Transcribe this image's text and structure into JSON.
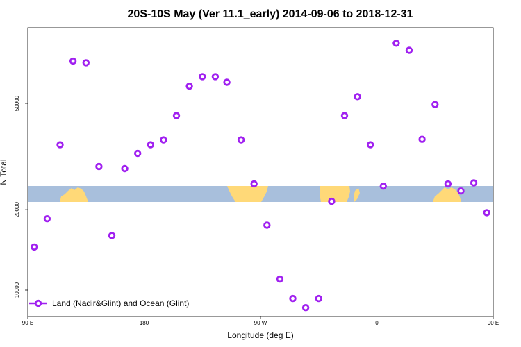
{
  "chart_data": {
    "type": "scatter",
    "title": "20S-10S May (Ver 11.1_early)   2014-09-06 to 2018-12-31",
    "xlabel": "Longitude (deg E)",
    "ylabel": "N Total",
    "x_domain": [
      90,
      450
    ],
    "y_log_scale": true,
    "ylim": [
      8500,
      90000
    ],
    "x_ticks": [
      {
        "value": 90,
        "label": "90 E"
      },
      {
        "value": 180,
        "label": "180"
      },
      {
        "value": 270,
        "label": "90 W"
      },
      {
        "value": 360,
        "label": "0"
      },
      {
        "value": 450,
        "label": "90 E"
      }
    ],
    "y_ticks": [
      {
        "value": 10000,
        "label": "10000"
      },
      {
        "value": 20000,
        "label": "20000"
      },
      {
        "value": 50000,
        "label": "50000"
      }
    ],
    "marker_color": "#a020f0",
    "land_color": "#ffd978",
    "ocean_color": "#a8bfdc",
    "legend": {
      "label": "Land (Nadir&Glint) and Ocean (Glint)",
      "position": "bottom-left"
    },
    "series": [
      {
        "name": "Land (Nadir&Glint) and Ocean (Glint)",
        "points": [
          {
            "lon": 95,
            "n": 14500
          },
          {
            "lon": 105,
            "n": 18500
          },
          {
            "lon": 115,
            "n": 35000
          },
          {
            "lon": 125,
            "n": 72000
          },
          {
            "lon": 135,
            "n": 71000
          },
          {
            "lon": 145,
            "n": 29000
          },
          {
            "lon": 155,
            "n": 16000
          },
          {
            "lon": 165,
            "n": 28500
          },
          {
            "lon": 175,
            "n": 32500
          },
          {
            "lon": 185,
            "n": 35000
          },
          {
            "lon": 195,
            "n": 36500
          },
          {
            "lon": 205,
            "n": 45000
          },
          {
            "lon": 215,
            "n": 58000
          },
          {
            "lon": 225,
            "n": 63000
          },
          {
            "lon": 235,
            "n": 63000
          },
          {
            "lon": 244,
            "n": 60000
          },
          {
            "lon": 255,
            "n": 36500
          },
          {
            "lon": 265,
            "n": 25000
          },
          {
            "lon": 275,
            "n": 17500
          },
          {
            "lon": 285,
            "n": 11000
          },
          {
            "lon": 295,
            "n": 9300
          },
          {
            "lon": 305,
            "n": 8600
          },
          {
            "lon": 315,
            "n": 9300
          },
          {
            "lon": 325,
            "n": 21500
          },
          {
            "lon": 335,
            "n": 45000
          },
          {
            "lon": 345,
            "n": 53000
          },
          {
            "lon": 355,
            "n": 35000
          },
          {
            "lon": 365,
            "n": 24500
          },
          {
            "lon": 375,
            "n": 84000
          },
          {
            "lon": 385,
            "n": 79000
          },
          {
            "lon": 395,
            "n": 36700
          },
          {
            "lon": 405,
            "n": 49500
          },
          {
            "lon": 415,
            "n": 25000
          },
          {
            "lon": 425,
            "n": 23500
          },
          {
            "lon": 435,
            "n": 25200
          },
          {
            "lon": 445,
            "n": 19500
          }
        ]
      }
    ]
  }
}
